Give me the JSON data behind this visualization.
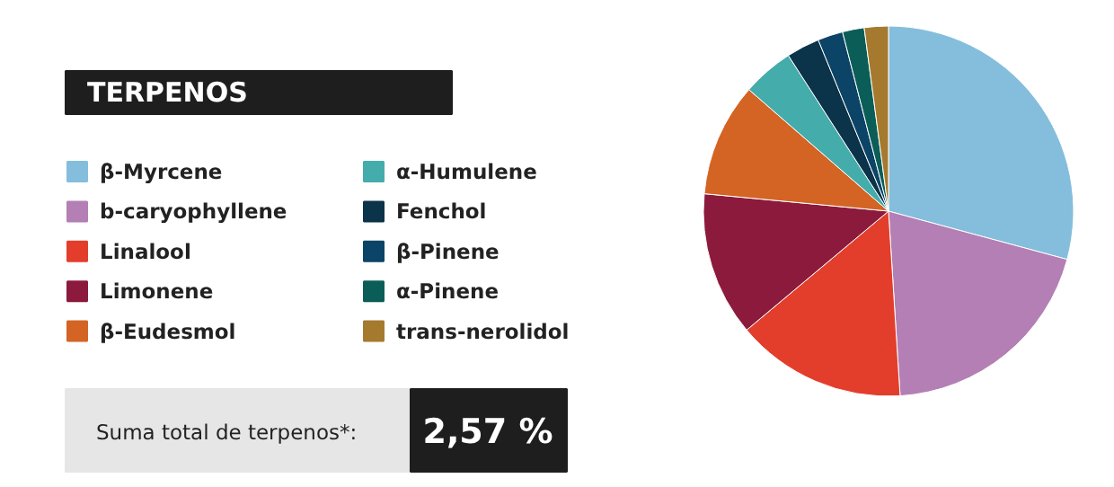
{
  "chart_data": {
    "type": "pie",
    "title": "TERPENOS",
    "categories": [
      "β-Myrcene",
      "b-caryophyllene",
      "Linalool",
      "Limonene",
      "β-Eudesmol",
      "α-Humulene",
      "Fenchol",
      "β-Pinene",
      "α-Pinene",
      "trans-nerolidol"
    ],
    "values": [
      29.2,
      19.8,
      14.9,
      12.6,
      9.9,
      4.5,
      2.9,
      2.2,
      1.9,
      2.1
    ],
    "colors": [
      "#84bedc",
      "#b37fb5",
      "#e33e2b",
      "#8c1a3c",
      "#d46424",
      "#45acac",
      "#0b3349",
      "#0b4466",
      "#0b5e58",
      "#a57a2e"
    ],
    "legend": "left",
    "annotations": [
      "Suma total de terpenos*:",
      "2,57 %"
    ]
  }
}
